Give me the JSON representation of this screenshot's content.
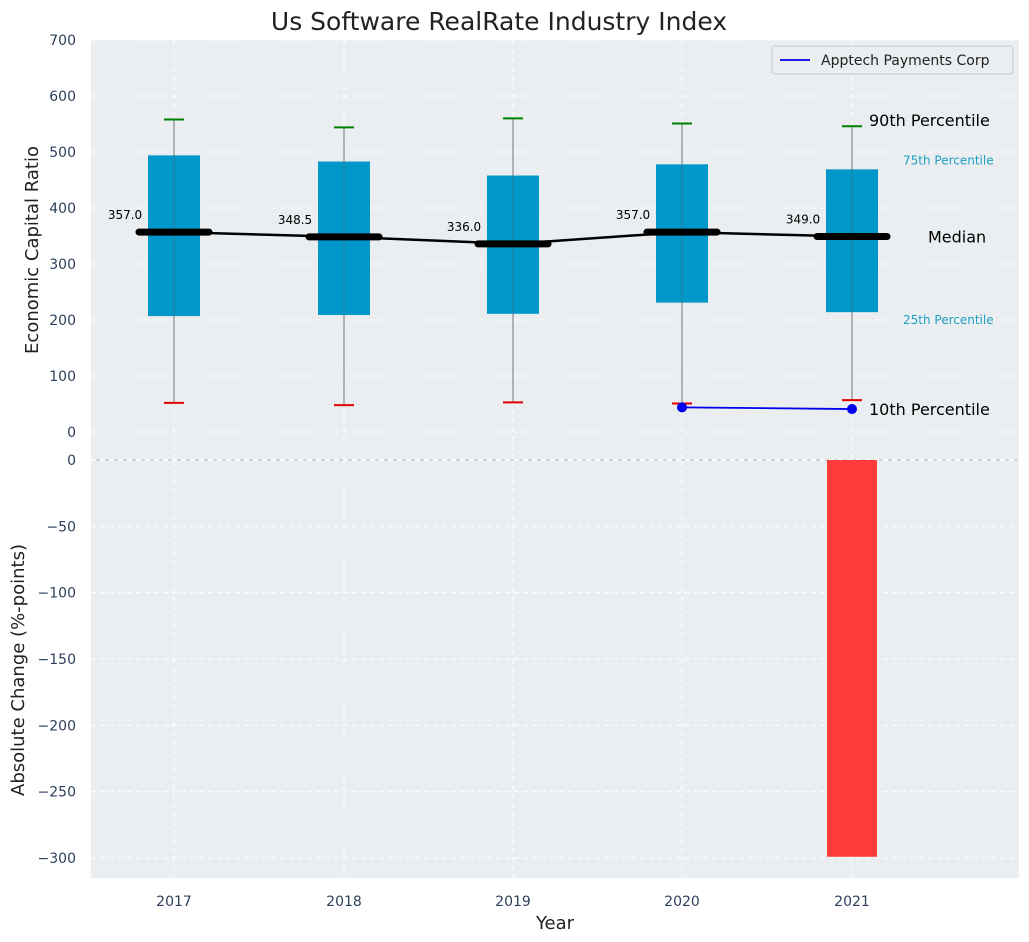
{
  "chart_data": [
    {
      "type": "box",
      "title": "Us Software RealRate Industry Index",
      "ylabel": "Economic Capital Ratio",
      "ylim": [
        0,
        700
      ],
      "yticks": [
        0,
        100,
        200,
        300,
        400,
        500,
        600,
        700
      ],
      "categories": [
        "2017",
        "2018",
        "2019",
        "2020",
        "2021"
      ],
      "percentiles": {
        "p10": [
          52,
          48,
          53,
          51,
          57
        ],
        "p25": [
          207,
          209,
          211,
          231,
          214
        ],
        "median": [
          357.0,
          348.5,
          336.0,
          357.0,
          349.0
        ],
        "p75": [
          494,
          483,
          458,
          478,
          469
        ],
        "p90": [
          558,
          544,
          560,
          551,
          546
        ]
      },
      "median_labels": [
        "357.0",
        "348.5",
        "336.0",
        "357.0",
        "349.0"
      ],
      "series": [
        {
          "name": "Apptech Payments Corp",
          "x": [
            "2020",
            "2021"
          ],
          "values": [
            44,
            41
          ],
          "color": "#0000ee"
        }
      ],
      "annotations": {
        "p90": "90th Percentile",
        "p75": "75th Percentile",
        "median": "Median",
        "p25": "25th Percentile",
        "p10": "10th Percentile"
      },
      "legend": "top-right",
      "grid": true
    },
    {
      "type": "bar",
      "ylabel": "Absolute Change (%-points)",
      "xlabel": "Year",
      "ylim": [
        -315,
        0
      ],
      "yticks": [
        0,
        -50,
        -100,
        -150,
        -200,
        -250,
        -300
      ],
      "yticklabels": [
        "0",
        "−50",
        "−100",
        "−150",
        "−200",
        "−250",
        "−300"
      ],
      "categories": [
        "2017",
        "2018",
        "2019",
        "2020",
        "2021"
      ],
      "values": [
        null,
        null,
        null,
        null,
        -299
      ],
      "grid": true
    }
  ],
  "colors": {
    "plot_bg": "#eaeef0",
    "box": "#0098cb",
    "whisker": "#8a8a8a",
    "p90_cap": "#008000",
    "p10_cap": "#e00000",
    "median": "#000000",
    "bar": "#ff3b3b",
    "annotation_blue": "#1f9fc2"
  }
}
